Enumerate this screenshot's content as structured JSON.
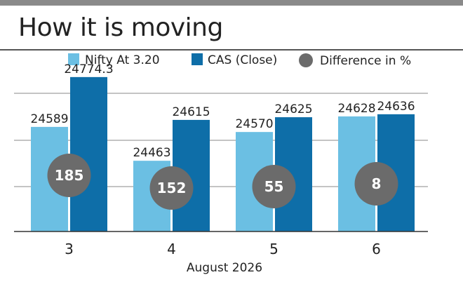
{
  "chart_data": {
    "type": "bar",
    "title": "How it is moving",
    "xlabel": "August 2026",
    "ylabel": "",
    "categories": [
      "3",
      "4",
      "5",
      "6"
    ],
    "series": [
      {
        "name": "Nifty At 3.20",
        "values": [
          24589,
          24463,
          24570,
          24628
        ],
        "labels": [
          "24589",
          "24463",
          "24570",
          "24628"
        ],
        "color": "#6bbfe3"
      },
      {
        "name": "CAS (Close)",
        "values": [
          24774.3,
          24615,
          24625,
          24636
        ],
        "labels": [
          "24774.3",
          "24615",
          "24625",
          "24636"
        ],
        "color": "#0e6ea8"
      }
    ],
    "difference": {
      "name": "Difference in %",
      "values": [
        "185",
        "152",
        "55",
        "8"
      ],
      "color": "#6b6b6b"
    },
    "ylim": [
      24200,
      24800
    ],
    "grid": true,
    "legend_position": "top"
  }
}
